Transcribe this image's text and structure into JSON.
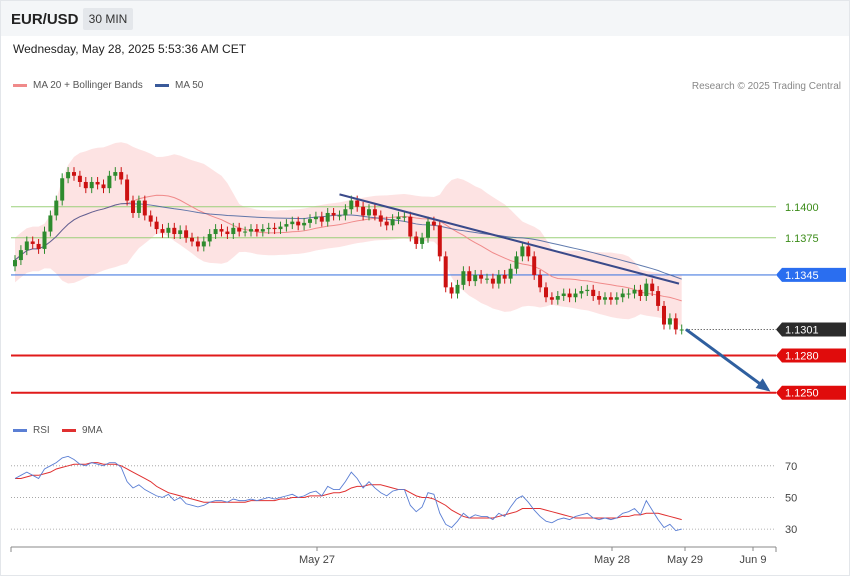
{
  "header": {
    "symbol": "EUR/USD",
    "timeframe": "30 MIN",
    "datetime": "Wednesday, May 28, 2025 5:53:36 AM CET"
  },
  "legend": {
    "ma20_label": "MA 20 + Bollinger Bands",
    "ma50_label": "MA 50",
    "rsi_label": "RSI",
    "ma9_label": "9MA",
    "credit": "Research © 2025 Trading Central"
  },
  "colors": {
    "ma20": "#f08a8a",
    "bands": "#fde0e0",
    "ma50": "#3a5a9a",
    "up": "#2e8b2e",
    "down": "#cc1111",
    "support": "#e01a1a",
    "resistance": "#9cd07a",
    "pivot": "#4a7de0",
    "trend": "#3a4a8a",
    "arrow": "#2f5f9f",
    "rsi": "#5b7fd4",
    "rsi_ma": "#e03030"
  },
  "chart_data": [
    {
      "type": "candlestick",
      "title": "EUR/USD",
      "timeframe": "30 MIN",
      "ylim": [
        1.1232,
        1.147
      ],
      "x_ticks": [
        "May 27",
        "May 28",
        "May 29",
        "Jun 9"
      ],
      "current_price": 1.1301,
      "levels": [
        {
          "value": 1.14,
          "label": "1.1400",
          "kind": "resistance"
        },
        {
          "value": 1.1375,
          "label": "1.1375",
          "kind": "resistance"
        },
        {
          "value": 1.1345,
          "label": "1.1345",
          "kind": "pivot"
        },
        {
          "value": 1.1301,
          "label": "1.1301",
          "kind": "current"
        },
        {
          "value": 1.128,
          "label": "1.1280",
          "kind": "support"
        },
        {
          "value": 1.125,
          "label": "1.1250",
          "kind": "support"
        }
      ],
      "trendline": {
        "from": 1.141,
        "to": 1.1338
      },
      "projection": {
        "from": 1.1301,
        "to": 1.125
      },
      "closes": [
        1.1357,
        1.1365,
        1.1372,
        1.137,
        1.1366,
        1.138,
        1.1393,
        1.1405,
        1.1423,
        1.1428,
        1.1425,
        1.142,
        1.1415,
        1.142,
        1.1418,
        1.1415,
        1.1425,
        1.1428,
        1.1422,
        1.1405,
        1.1395,
        1.1405,
        1.1393,
        1.1388,
        1.1382,
        1.1379,
        1.1383,
        1.1378,
        1.1381,
        1.1375,
        1.1372,
        1.1368,
        1.1372,
        1.1378,
        1.1382,
        1.138,
        1.1378,
        1.1383,
        1.138,
        1.138,
        1.1382,
        1.138,
        1.1382,
        1.1383,
        1.1382,
        1.1384,
        1.1386,
        1.1388,
        1.1385,
        1.1387,
        1.139,
        1.1392,
        1.1388,
        1.1395,
        1.1393,
        1.1393,
        1.1398,
        1.1405,
        1.14,
        1.1393,
        1.1398,
        1.1393,
        1.1388,
        1.1385,
        1.139,
        1.1392,
        1.1392,
        1.1376,
        1.137,
        1.1375,
        1.1388,
        1.1385,
        1.136,
        1.1335,
        1.133,
        1.1337,
        1.1348,
        1.134,
        1.1345,
        1.1342,
        1.1342,
        1.1338,
        1.1345,
        1.1342,
        1.135,
        1.136,
        1.1368,
        1.136,
        1.1345,
        1.1335,
        1.1327,
        1.1325,
        1.1328,
        1.133,
        1.1327,
        1.133,
        1.1332,
        1.1333,
        1.1328,
        1.1325,
        1.1327,
        1.1325,
        1.1327,
        1.133,
        1.133,
        1.1333,
        1.1328,
        1.1338,
        1.1332,
        1.132,
        1.1305,
        1.131,
        1.1301,
        1.1301
      ],
      "opens": [
        1.1352,
        1.1357,
        1.1365,
        1.1372,
        1.137,
        1.1366,
        1.138,
        1.1393,
        1.1405,
        1.1423,
        1.1428,
        1.1425,
        1.142,
        1.1415,
        1.142,
        1.1418,
        1.1415,
        1.1425,
        1.1428,
        1.1422,
        1.1405,
        1.1395,
        1.1405,
        1.1393,
        1.1388,
        1.1382,
        1.1379,
        1.1383,
        1.1378,
        1.1381,
        1.1375,
        1.1372,
        1.1368,
        1.1372,
        1.1378,
        1.1382,
        1.138,
        1.1378,
        1.1383,
        1.138,
        1.138,
        1.1382,
        1.138,
        1.1382,
        1.1383,
        1.1382,
        1.1384,
        1.1386,
        1.1388,
        1.1385,
        1.1387,
        1.139,
        1.1392,
        1.1388,
        1.1395,
        1.1393,
        1.1393,
        1.1398,
        1.1405,
        1.14,
        1.1393,
        1.1398,
        1.1393,
        1.1388,
        1.1385,
        1.139,
        1.1392,
        1.1392,
        1.1376,
        1.137,
        1.1375,
        1.1388,
        1.1385,
        1.136,
        1.1335,
        1.133,
        1.1337,
        1.1348,
        1.134,
        1.1345,
        1.1342,
        1.1342,
        1.1338,
        1.1345,
        1.1342,
        1.135,
        1.136,
        1.1368,
        1.136,
        1.1345,
        1.1335,
        1.1327,
        1.1325,
        1.1328,
        1.133,
        1.1327,
        1.133,
        1.1332,
        1.1333,
        1.1328,
        1.1325,
        1.1327,
        1.1325,
        1.1327,
        1.133,
        1.133,
        1.1333,
        1.1328,
        1.1338,
        1.1332,
        1.132,
        1.1305,
        1.131,
        1.1301
      ]
    },
    {
      "type": "line",
      "title": "RSI",
      "ylim": [
        25,
        80
      ],
      "y_ticks": [
        30,
        50,
        70
      ],
      "series": [
        {
          "name": "RSI",
          "values": [
            62,
            64,
            66,
            64,
            62,
            68,
            70,
            72,
            75,
            76,
            74,
            71,
            70,
            72,
            71,
            70,
            72,
            72,
            69,
            60,
            56,
            58,
            55,
            53,
            51,
            50,
            52,
            48,
            50,
            46,
            45,
            44,
            45,
            47,
            48,
            48,
            47,
            49,
            48,
            48,
            49,
            48,
            49,
            50,
            49,
            50,
            51,
            52,
            50,
            51,
            53,
            54,
            51,
            57,
            55,
            55,
            60,
            66,
            62,
            56,
            60,
            56,
            53,
            51,
            54,
            55,
            55,
            45,
            41,
            44,
            53,
            52,
            40,
            33,
            31,
            35,
            40,
            37,
            39,
            38,
            38,
            36,
            40,
            38,
            44,
            49,
            51,
            47,
            42,
            38,
            35,
            34,
            36,
            37,
            36,
            38,
            39,
            40,
            37,
            36,
            37,
            36,
            37,
            40,
            41,
            43,
            39,
            48,
            42,
            36,
            31,
            33,
            29,
            30
          ]
        },
        {
          "name": "9MA",
          "values": [
            62,
            62,
            63,
            64,
            64,
            65,
            66,
            68,
            69,
            70,
            71,
            71,
            71,
            72,
            72,
            71,
            71,
            71,
            70,
            68,
            66,
            64,
            62,
            60,
            57,
            55,
            53,
            52,
            51,
            50,
            49,
            48,
            47,
            47,
            47,
            47,
            47,
            47,
            47,
            47,
            48,
            48,
            48,
            48,
            48,
            49,
            49,
            50,
            50,
            50,
            51,
            51,
            51,
            52,
            53,
            53,
            54,
            56,
            57,
            57,
            58,
            58,
            58,
            57,
            56,
            55,
            55,
            53,
            51,
            50,
            50,
            49,
            47,
            45,
            42,
            40,
            38,
            37,
            37,
            37,
            37,
            37,
            38,
            39,
            40,
            41,
            43,
            43,
            43,
            43,
            42,
            41,
            40,
            39,
            38,
            37,
            37,
            37,
            37,
            37,
            37,
            37,
            37,
            38,
            38,
            39,
            39,
            40,
            40,
            40,
            39,
            38,
            37,
            36
          ]
        }
      ]
    }
  ]
}
